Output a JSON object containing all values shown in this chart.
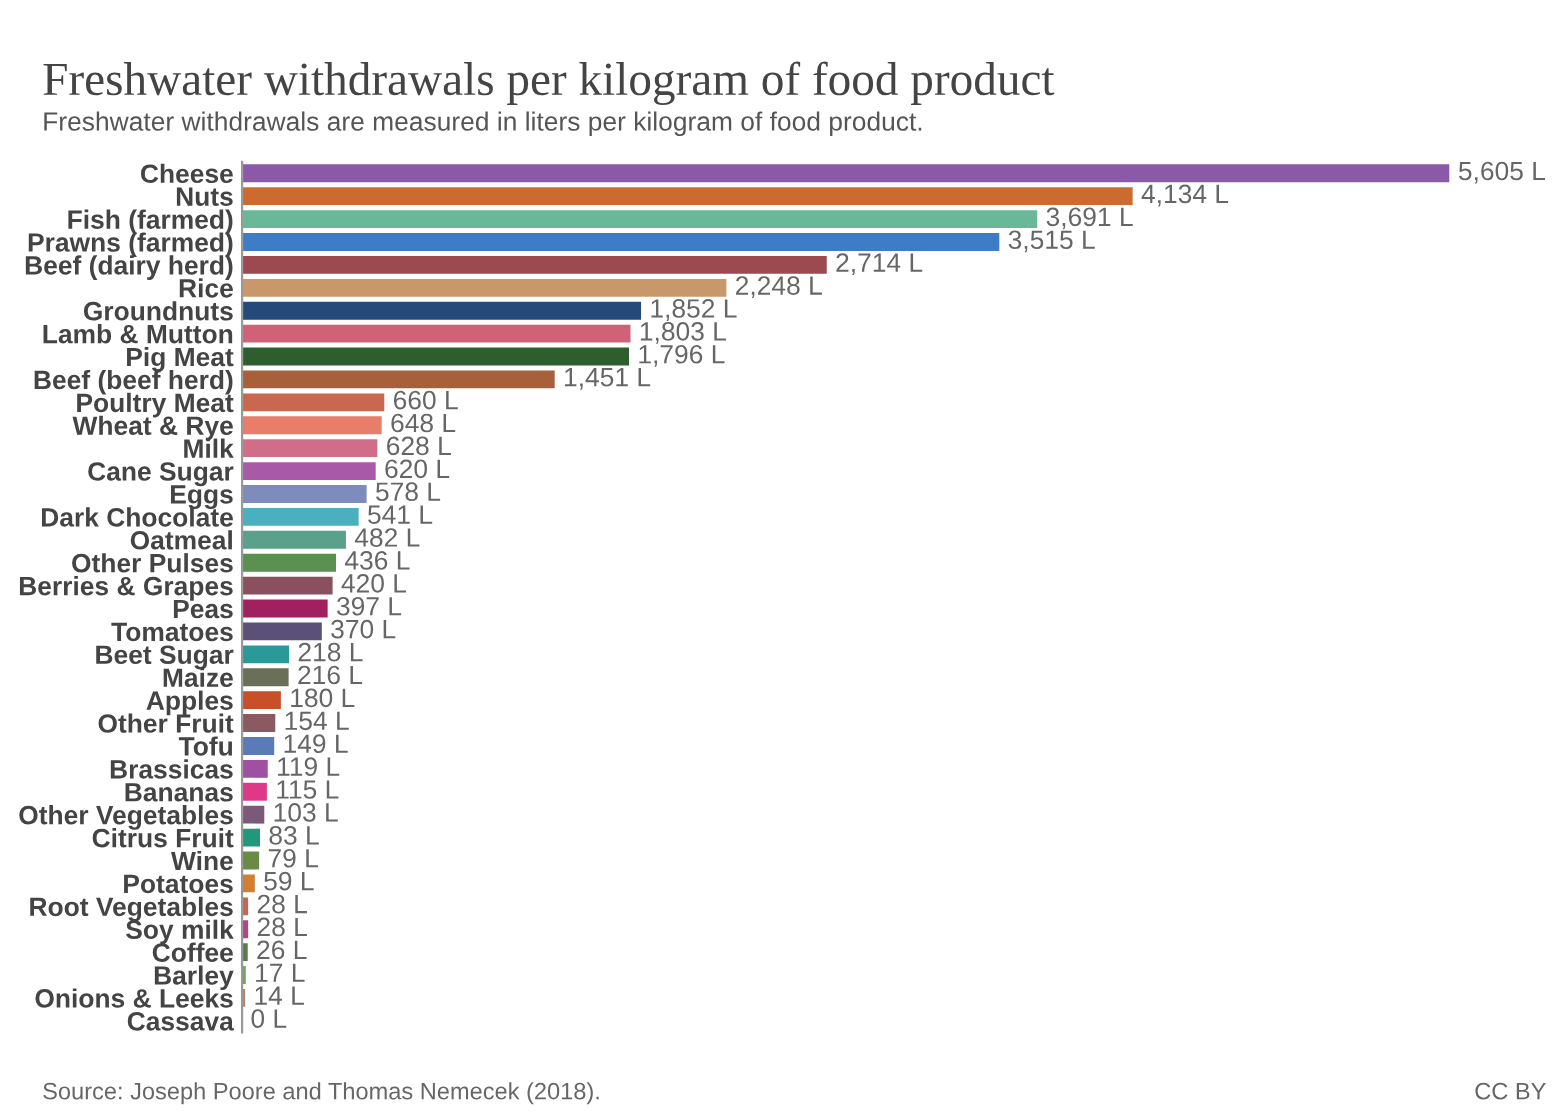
{
  "chart_data": {
    "type": "bar",
    "orientation": "horizontal",
    "title": "Freshwater withdrawals per kilogram of food product",
    "subtitle": "Freshwater withdrawals are measured in liters per kilogram of food product.",
    "categories": [
      "Cheese",
      "Nuts",
      "Fish (farmed)",
      "Prawns (farmed)",
      "Beef (dairy herd)",
      "Rice",
      "Groundnuts",
      "Lamb & Mutton",
      "Pig Meat",
      "Beef (beef herd)",
      "Poultry Meat",
      "Wheat & Rye",
      "Milk",
      "Cane Sugar",
      "Eggs",
      "Dark Chocolate",
      "Oatmeal",
      "Other Pulses",
      "Berries & Grapes",
      "Peas",
      "Tomatoes",
      "Beet Sugar",
      "Maize",
      "Apples",
      "Other Fruit",
      "Tofu",
      "Brassicas",
      "Bananas",
      "Other Vegetables",
      "Citrus Fruit",
      "Wine",
      "Potatoes",
      "Root Vegetables",
      "Soy milk",
      "Coffee",
      "Barley",
      "Onions & Leeks",
      "Cassava"
    ],
    "values": [
      5605,
      4134,
      3691,
      3515,
      2714,
      2248,
      1852,
      1803,
      1796,
      1451,
      660,
      648,
      628,
      620,
      578,
      541,
      482,
      436,
      420,
      397,
      370,
      218,
      216,
      180,
      154,
      149,
      119,
      115,
      103,
      83,
      79,
      59,
      28,
      28,
      26,
      17,
      14,
      0
    ],
    "value_labels": [
      "5,605 L",
      "4,134 L",
      "3,691 L",
      "3,515 L",
      "2,714 L",
      "2,248 L",
      "1,852 L",
      "1,803 L",
      "1,796 L",
      "1,451 L",
      "660 L",
      "648 L",
      "628 L",
      "620 L",
      "578 L",
      "541 L",
      "482 L",
      "436 L",
      "420 L",
      "397 L",
      "370 L",
      "218 L",
      "216 L",
      "180 L",
      "154 L",
      "149 L",
      "119 L",
      "115 L",
      "103 L",
      "83 L",
      "79 L",
      "59 L",
      "28 L",
      "28 L",
      "26 L",
      "17 L",
      "14 L",
      "0 L"
    ],
    "colors": [
      "#8a5aa8",
      "#cc6b30",
      "#6ab89a",
      "#3f7cc8",
      "#9c4a4f",
      "#c8986a",
      "#234a78",
      "#cf6276",
      "#2e5e2e",
      "#a8603a",
      "#c86850",
      "#e87e6a",
      "#d06e8a",
      "#a85aa8",
      "#7d8cba",
      "#4ab0c0",
      "#5aa08a",
      "#5a9050",
      "#8a5060",
      "#a02060",
      "#5a5078",
      "#2a9a98",
      "#6a7058",
      "#c85028",
      "#8a5a60",
      "#5a7ab8",
      "#a050a0",
      "#e03888",
      "#7a5a78",
      "#20987a",
      "#6a8a48",
      "#d08030",
      "#c06850",
      "#b04880",
      "#5a7848",
      "#6aa858",
      "#b08868",
      "#999999"
    ],
    "relative": false,
    "annotations": [
      "Source: Joseph Poore and Thomas Nemecek (2018).",
      "CC BY"
    ]
  }
}
